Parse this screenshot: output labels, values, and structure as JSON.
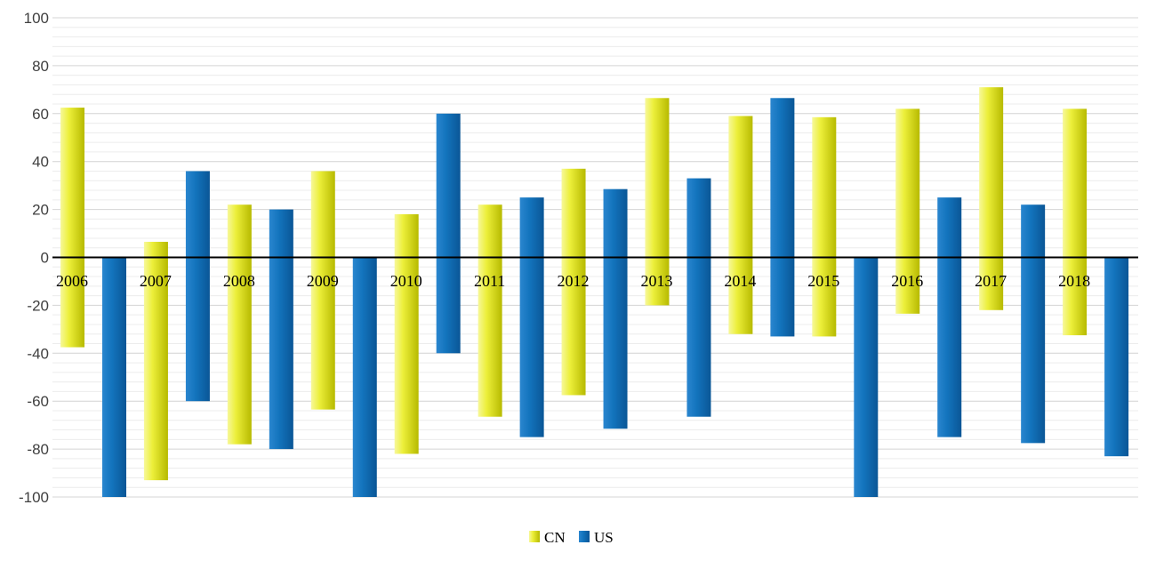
{
  "chart_data": {
    "type": "bar",
    "orientation": "vertical",
    "mode": "floating-range",
    "categories": [
      "2006",
      "2007",
      "2008",
      "2009",
      "2010",
      "2011",
      "2012",
      "2013",
      "2014",
      "2015",
      "2016",
      "2017",
      "2018"
    ],
    "series": [
      {
        "name": "CN",
        "color": "#d8dc0a",
        "highs": [
          62.5,
          6.5,
          22,
          36,
          18,
          22,
          37,
          66.5,
          59,
          58.5,
          62,
          71,
          62
        ],
        "lows": [
          -37.5,
          -93,
          -78,
          -63.5,
          -82,
          -66.5,
          -57.5,
          -20,
          -32,
          -33,
          -23.5,
          -22,
          -32.5
        ]
      },
      {
        "name": "US",
        "color": "#0f6cb6",
        "highs": [
          0,
          36,
          20,
          0,
          60,
          25,
          28.5,
          33,
          66.5,
          0,
          25,
          22,
          0
        ],
        "lows": [
          -100,
          -60,
          -80,
          -100,
          -40,
          -75,
          -71.5,
          -66.5,
          -33,
          -100,
          -75,
          -77.5,
          -83
        ]
      }
    ],
    "ylim": [
      -100,
      100
    ],
    "yticks": [
      "100",
      "80",
      "60",
      "40",
      "20",
      "0",
      "-20",
      "-40",
      "-60",
      "-80",
      "-100"
    ],
    "ytick_values": [
      100,
      80,
      60,
      40,
      20,
      0,
      -20,
      -40,
      -60,
      -80,
      -100
    ],
    "minor_grid_step": 4,
    "grid": true,
    "legend_position": "bottom-center",
    "title": "",
    "xlabel": "",
    "ylabel": ""
  }
}
